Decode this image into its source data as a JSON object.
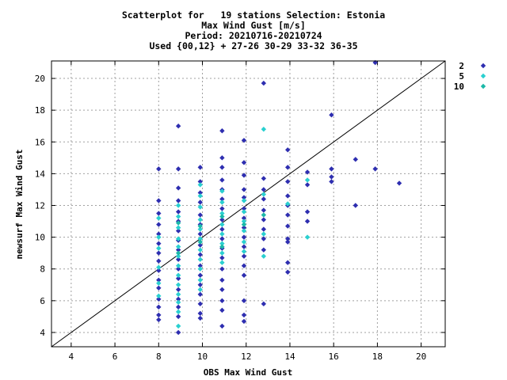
{
  "chart_data": {
    "type": "scatter",
    "title_lines": [
      "Scatterplot for   19 stations Selection: Estonia",
      "Max Wind Gust [m/s]",
      "Period: 20210716-20210724",
      "Used {00,12} + 27-26 30-29 33-32 36-35"
    ],
    "xlabel": "OBS Max Wind Gust",
    "ylabel": "newsurf Max Wind Gust",
    "xlim": [
      3.1,
      21.1
    ],
    "ylim": [
      3.1,
      21.1
    ],
    "xticks": [
      4,
      6,
      8,
      10,
      12,
      14,
      16,
      18,
      20
    ],
    "yticks": [
      4,
      6,
      8,
      10,
      12,
      14,
      16,
      18,
      20
    ],
    "grid": true,
    "diagonal": true,
    "legend_position": "top-right-outside",
    "colors": {
      "2": "#2e2eb0",
      "5": "#2ad0d0",
      "10": "#1bb8a8"
    },
    "series": [
      {
        "name": "2",
        "color": "#2e2eb0",
        "points": [
          [
            8.0,
            14.3
          ],
          [
            8.0,
            12.3
          ],
          [
            8.0,
            11.5
          ],
          [
            8.0,
            10.8
          ],
          [
            8.0,
            10.2
          ],
          [
            8.0,
            9.6
          ],
          [
            8.0,
            9.0
          ],
          [
            8.0,
            8.5
          ],
          [
            8.0,
            7.9
          ],
          [
            8.0,
            7.3
          ],
          [
            8.0,
            6.8
          ],
          [
            8.0,
            6.1
          ],
          [
            8.0,
            5.6
          ],
          [
            8.0,
            5.1
          ],
          [
            8.0,
            4.8
          ],
          [
            8.9,
            17.0
          ],
          [
            8.9,
            14.3
          ],
          [
            8.9,
            13.1
          ],
          [
            8.9,
            12.3
          ],
          [
            8.9,
            11.6
          ],
          [
            8.9,
            11.0
          ],
          [
            8.9,
            10.4
          ],
          [
            8.9,
            9.8
          ],
          [
            8.9,
            9.2
          ],
          [
            8.9,
            8.6
          ],
          [
            8.9,
            8.0
          ],
          [
            8.9,
            7.4
          ],
          [
            8.9,
            6.7
          ],
          [
            8.9,
            6.1
          ],
          [
            8.9,
            5.6
          ],
          [
            8.9,
            5.0
          ],
          [
            8.9,
            4.0
          ],
          [
            9.9,
            14.4
          ],
          [
            9.9,
            13.5
          ],
          [
            9.9,
            12.8
          ],
          [
            9.9,
            12.2
          ],
          [
            9.9,
            11.4
          ],
          [
            9.9,
            10.8
          ],
          [
            9.9,
            10.2
          ],
          [
            9.9,
            9.5
          ],
          [
            9.9,
            8.9
          ],
          [
            9.9,
            8.2
          ],
          [
            9.9,
            7.6
          ],
          [
            9.9,
            7.0
          ],
          [
            9.9,
            6.4
          ],
          [
            9.9,
            5.8
          ],
          [
            9.9,
            5.2
          ],
          [
            9.9,
            4.9
          ],
          [
            10.9,
            16.7
          ],
          [
            10.9,
            15.0
          ],
          [
            10.9,
            14.4
          ],
          [
            10.9,
            13.6
          ],
          [
            10.9,
            13.0
          ],
          [
            10.9,
            12.4
          ],
          [
            10.9,
            11.8
          ],
          [
            10.9,
            11.1
          ],
          [
            10.9,
            10.5
          ],
          [
            10.9,
            9.9
          ],
          [
            10.9,
            9.3
          ],
          [
            10.9,
            8.7
          ],
          [
            10.9,
            8.0
          ],
          [
            10.9,
            7.3
          ],
          [
            10.9,
            6.7
          ],
          [
            10.9,
            6.0
          ],
          [
            10.9,
            5.4
          ],
          [
            10.9,
            4.4
          ],
          [
            11.9,
            16.1
          ],
          [
            11.9,
            14.7
          ],
          [
            11.9,
            13.9
          ],
          [
            11.9,
            13.0
          ],
          [
            11.9,
            12.5
          ],
          [
            11.9,
            11.8
          ],
          [
            11.9,
            11.2
          ],
          [
            11.9,
            10.6
          ],
          [
            11.9,
            10.0
          ],
          [
            11.9,
            9.4
          ],
          [
            11.9,
            8.8
          ],
          [
            11.9,
            8.2
          ],
          [
            11.9,
            7.6
          ],
          [
            11.9,
            6.0
          ],
          [
            11.9,
            5.1
          ],
          [
            11.9,
            4.7
          ],
          [
            12.8,
            19.7
          ],
          [
            12.8,
            13.7
          ],
          [
            12.8,
            13.0
          ],
          [
            12.8,
            12.4
          ],
          [
            12.8,
            11.7
          ],
          [
            12.8,
            11.1
          ],
          [
            12.8,
            10.5
          ],
          [
            12.8,
            9.9
          ],
          [
            12.8,
            9.2
          ],
          [
            12.8,
            5.8
          ],
          [
            13.9,
            15.5
          ],
          [
            13.9,
            14.4
          ],
          [
            13.9,
            13.5
          ],
          [
            13.9,
            12.6
          ],
          [
            13.9,
            12.0
          ],
          [
            13.9,
            11.4
          ],
          [
            13.9,
            10.7
          ],
          [
            13.9,
            9.9
          ],
          [
            13.9,
            9.7
          ],
          [
            13.9,
            8.4
          ],
          [
            13.9,
            7.8
          ],
          [
            14.8,
            14.1
          ],
          [
            14.8,
            13.3
          ],
          [
            14.8,
            11.6
          ],
          [
            14.8,
            11.0
          ],
          [
            15.9,
            17.7
          ],
          [
            15.9,
            14.3
          ],
          [
            15.9,
            13.8
          ],
          [
            15.9,
            13.5
          ],
          [
            17.0,
            14.9
          ],
          [
            17.0,
            12.0
          ],
          [
            17.9,
            21.0
          ],
          [
            17.9,
            14.3
          ],
          [
            19.0,
            13.4
          ]
        ]
      },
      {
        "name": "5",
        "color": "#2ad0d0",
        "points": [
          [
            8.0,
            11.2
          ],
          [
            8.0,
            10.0
          ],
          [
            8.0,
            9.3
          ],
          [
            8.0,
            8.1
          ],
          [
            8.0,
            7.1
          ],
          [
            8.0,
            6.3
          ],
          [
            8.9,
            12.0
          ],
          [
            8.9,
            11.3
          ],
          [
            8.9,
            10.6
          ],
          [
            8.9,
            9.9
          ],
          [
            8.9,
            9.4
          ],
          [
            8.9,
            8.8
          ],
          [
            8.9,
            8.2
          ],
          [
            8.9,
            7.6
          ],
          [
            8.9,
            7.0
          ],
          [
            8.9,
            6.4
          ],
          [
            8.9,
            5.9
          ],
          [
            8.9,
            5.3
          ],
          [
            8.9,
            4.4
          ],
          [
            9.9,
            13.3
          ],
          [
            9.9,
            12.6
          ],
          [
            9.9,
            11.9
          ],
          [
            9.9,
            11.1
          ],
          [
            9.9,
            10.5
          ],
          [
            9.9,
            9.9
          ],
          [
            9.9,
            9.2
          ],
          [
            9.9,
            8.6
          ],
          [
            9.9,
            8.0
          ],
          [
            9.9,
            7.3
          ],
          [
            9.9,
            6.7
          ],
          [
            10.9,
            12.9
          ],
          [
            10.9,
            12.2
          ],
          [
            10.9,
            11.5
          ],
          [
            10.9,
            10.8
          ],
          [
            10.9,
            10.2
          ],
          [
            10.9,
            9.6
          ],
          [
            10.9,
            9.0
          ],
          [
            10.9,
            8.4
          ],
          [
            11.9,
            12.3
          ],
          [
            11.9,
            11.6
          ],
          [
            11.9,
            11.0
          ],
          [
            11.9,
            10.4
          ],
          [
            11.9,
            9.7
          ],
          [
            11.9,
            9.1
          ],
          [
            12.8,
            16.8
          ],
          [
            12.8,
            12.7
          ],
          [
            12.8,
            10.2
          ],
          [
            12.8,
            8.8
          ],
          [
            13.9,
            12.1
          ],
          [
            14.8,
            13.6
          ],
          [
            14.8,
            10.0
          ]
        ]
      },
      {
        "name": "10",
        "color": "#1bb8a8",
        "points": [
          [
            8.9,
            10.9
          ],
          [
            8.9,
            9.0
          ],
          [
            9.9,
            10.7
          ],
          [
            9.9,
            9.7
          ],
          [
            10.9,
            11.3
          ],
          [
            10.9,
            9.4
          ],
          [
            11.9,
            10.8
          ],
          [
            12.8,
            11.4
          ]
        ]
      }
    ]
  }
}
